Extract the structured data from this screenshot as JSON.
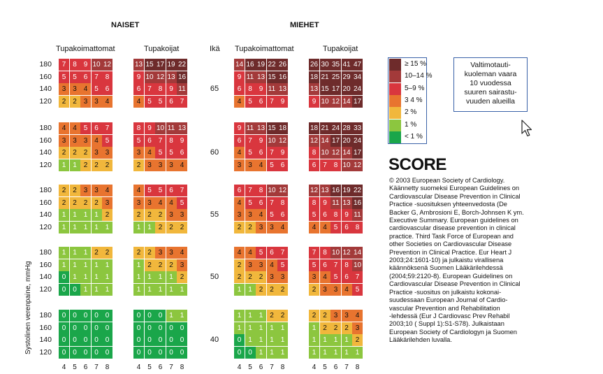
{
  "headers": {
    "women": "NAISET",
    "men": "MIEHET",
    "non_smokers": "Tupakoimattomat",
    "smokers": "Tupakoijat",
    "age": "Ikä"
  },
  "y_axis_label": "Systolinen verenpaine, mmHg",
  "bp_levels": [
    "180",
    "160",
    "140",
    "120"
  ],
  "cholesterol_ticks": [
    "4",
    "5",
    "6",
    "7",
    "8"
  ],
  "info_box": "Valtimotauti-\nkuoleman vaara\n10 vuodessa\nsuuren sairastu-\nvuuden alueilla",
  "logo_text": "SCORE",
  "credit_text": "© 2003 European Society of Cardiology.\nKäännetty suomeksi European Guidelines on\nCardiovascular Disease Prevention in Clinical\nPractice -suosituksen  yhteenvedosta (De\nBacker G, Ambrosioni E, Borch-Johnsen K ym.\nExecutive Summary. European guidelines on\ncardiovascular disease prevention in clinical\npractice. Third Task Force of European and\nother Societies on Cardiovascular Disease\nPrevention in Clinical Practice. Eur Heart J\n2003;24:1601-10) ja julkaistu virallisena\nkäännöksenä Suomen Lääkärilehdessä\n(2004;59:2120-8). European Guidelines on\nCardiovascular Disease Prevention in Clinical\nPractice -suositus on julkaistu kokonai-\nsuudessaan European Journal of Cardio-\nvascular Prevention and Rehabilitation\n-lehdessä (Eur J Cardiovasc Prev Rehabil\n2003;10 ( Suppl 1):S1-S78). Julkaistaan\nEuropean Society of Cardiologyn ja Suomen\nLääkärilehden luvalla.",
  "legend": [
    {
      "label": "≥ 15 %",
      "color": "#6e2b2b"
    },
    {
      "label": "10–14 %",
      "color": "#a33a3a"
    },
    {
      "label": "5–9 %",
      "color": "#d9363e"
    },
    {
      "label": "3  4 %",
      "color": "#e8742f"
    },
    {
      "label": "2 %",
      "color": "#f1b73c"
    },
    {
      "label": "1 %",
      "color": "#8cc63f"
    },
    {
      "label": "< 1 %",
      "color": "#1aa64a"
    }
  ],
  "age_blocks": [
    {
      "age": "65",
      "women_nonsmoker": [
        [
          7,
          8,
          9,
          10,
          12
        ],
        [
          5,
          5,
          6,
          7,
          8
        ],
        [
          3,
          3,
          4,
          5,
          6
        ],
        [
          2,
          2,
          3,
          3,
          4
        ]
      ],
      "women_smoker": [
        [
          13,
          15,
          17,
          19,
          22
        ],
        [
          9,
          10,
          12,
          13,
          16
        ],
        [
          6,
          7,
          8,
          9,
          11
        ],
        [
          4,
          5,
          5,
          6,
          7
        ]
      ],
      "men_nonsmoker": [
        [
          14,
          16,
          19,
          22,
          26
        ],
        [
          9,
          11,
          13,
          15,
          16
        ],
        [
          6,
          8,
          9,
          11,
          13
        ],
        [
          4,
          5,
          6,
          7,
          9
        ]
      ],
      "men_smoker": [
        [
          26,
          30,
          35,
          41,
          47
        ],
        [
          18,
          21,
          25,
          29,
          34
        ],
        [
          13,
          15,
          17,
          20,
          24
        ],
        [
          9,
          10,
          12,
          14,
          17
        ]
      ]
    },
    {
      "age": "60",
      "women_nonsmoker": [
        [
          4,
          4,
          5,
          6,
          7
        ],
        [
          3,
          3,
          3,
          4,
          5
        ],
        [
          2,
          2,
          2,
          3,
          3
        ],
        [
          1,
          1,
          2,
          2,
          2
        ]
      ],
      "women_smoker": [
        [
          8,
          9,
          10,
          11,
          13
        ],
        [
          5,
          6,
          7,
          8,
          9
        ],
        [
          3,
          4,
          5,
          5,
          6
        ],
        [
          2,
          3,
          3,
          3,
          4
        ]
      ],
      "men_nonsmoker": [
        [
          9,
          11,
          13,
          15,
          18
        ],
        [
          6,
          7,
          9,
          10,
          12
        ],
        [
          4,
          5,
          6,
          7,
          9
        ],
        [
          3,
          3,
          4,
          5,
          6
        ]
      ],
      "men_smoker": [
        [
          18,
          21,
          24,
          28,
          33
        ],
        [
          12,
          14,
          17,
          20,
          24
        ],
        [
          8,
          10,
          12,
          14,
          17
        ],
        [
          6,
          7,
          8,
          10,
          12
        ]
      ]
    },
    {
      "age": "55",
      "women_nonsmoker": [
        [
          2,
          2,
          3,
          3,
          4
        ],
        [
          2,
          2,
          2,
          2,
          3
        ],
        [
          1,
          1,
          1,
          1,
          2
        ],
        [
          1,
          1,
          1,
          1,
          1
        ]
      ],
      "women_smoker": [
        [
          4,
          5,
          5,
          6,
          7
        ],
        [
          3,
          3,
          4,
          4,
          5
        ],
        [
          2,
          2,
          2,
          3,
          3
        ],
        [
          1,
          1,
          2,
          2,
          2
        ]
      ],
      "men_nonsmoker": [
        [
          6,
          7,
          8,
          10,
          12
        ],
        [
          4,
          5,
          6,
          7,
          8
        ],
        [
          3,
          3,
          4,
          5,
          6
        ],
        [
          2,
          2,
          3,
          3,
          4
        ]
      ],
      "men_smoker": [
        [
          12,
          13,
          16,
          19,
          22
        ],
        [
          8,
          9,
          11,
          13,
          16
        ],
        [
          5,
          6,
          8,
          9,
          11
        ],
        [
          4,
          4,
          5,
          6,
          8
        ]
      ]
    },
    {
      "age": "50",
      "women_nonsmoker": [
        [
          1,
          1,
          1,
          2,
          2
        ],
        [
          1,
          1,
          1,
          1,
          1
        ],
        [
          0,
          1,
          1,
          1,
          1
        ],
        [
          0,
          0,
          1,
          1,
          1
        ]
      ],
      "women_smoker": [
        [
          2,
          2,
          3,
          3,
          4
        ],
        [
          1,
          2,
          2,
          2,
          3
        ],
        [
          1,
          1,
          1,
          1,
          2
        ],
        [
          1,
          1,
          1,
          1,
          1
        ]
      ],
      "men_nonsmoker": [
        [
          4,
          4,
          5,
          6,
          7
        ],
        [
          2,
          3,
          3,
          4,
          5
        ],
        [
          2,
          2,
          2,
          3,
          3
        ],
        [
          1,
          1,
          2,
          2,
          2
        ]
      ],
      "men_smoker": [
        [
          7,
          8,
          10,
          12,
          14
        ],
        [
          5,
          6,
          7,
          8,
          10
        ],
        [
          3,
          4,
          5,
          6,
          7
        ],
        [
          2,
          3,
          3,
          4,
          5
        ]
      ]
    },
    {
      "age": "40",
      "women_nonsmoker": [
        [
          0,
          0,
          0,
          0,
          0
        ],
        [
          0,
          0,
          0,
          0,
          0
        ],
        [
          0,
          0,
          0,
          0,
          0
        ],
        [
          0,
          0,
          0,
          0,
          0
        ]
      ],
      "women_smoker": [
        [
          0,
          0,
          0,
          1,
          1
        ],
        [
          0,
          0,
          0,
          0,
          0
        ],
        [
          0,
          0,
          0,
          0,
          0
        ],
        [
          0,
          0,
          0,
          0,
          0
        ]
      ],
      "men_nonsmoker": [
        [
          1,
          1,
          1,
          2,
          2
        ],
        [
          1,
          1,
          1,
          1,
          1
        ],
        [
          0,
          1,
          1,
          1,
          1
        ],
        [
          0,
          0,
          1,
          1,
          1
        ]
      ],
      "men_smoker": [
        [
          2,
          2,
          3,
          3,
          4
        ],
        [
          1,
          2,
          2,
          2,
          3
        ],
        [
          1,
          1,
          1,
          1,
          2
        ],
        [
          1,
          1,
          1,
          1,
          1
        ]
      ]
    }
  ]
}
